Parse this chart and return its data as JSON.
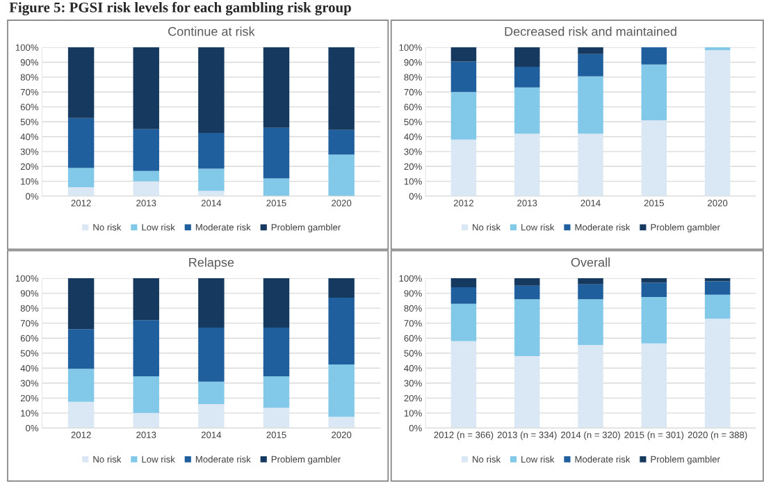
{
  "chart_data": [
    {
      "type": "bar",
      "title": "Continue at risk",
      "annotations": [
        "Figure 5: PGSI risk levels for each gambling risk group"
      ],
      "categories": [
        "2012",
        "2013",
        "2014",
        "2015",
        "2020"
      ],
      "stacked": true,
      "ylim": [
        0,
        100
      ],
      "yticks": [
        {
          "value": 0,
          "label": "0%"
        },
        {
          "value": 10,
          "label": "10%"
        },
        {
          "value": 20,
          "label": "20%"
        },
        {
          "value": 30,
          "label": "30%"
        },
        {
          "value": 40,
          "label": "40%"
        },
        {
          "value": 50,
          "label": "50%"
        },
        {
          "value": 60,
          "label": "60%"
        },
        {
          "value": 70,
          "label": "70%"
        },
        {
          "value": 80,
          "label": "80%"
        },
        {
          "value": 90,
          "label": "90%"
        },
        {
          "value": 100,
          "label": "100%"
        }
      ],
      "grid": "y",
      "legend": "bottom",
      "series": [
        {
          "name": "No risk",
          "color": "#dae8f5",
          "values": [
            6,
            10,
            3.5,
            0,
            0
          ]
        },
        {
          "name": "Low risk",
          "color": "#82c8e8",
          "values": [
            13,
            7,
            15,
            12,
            28
          ]
        },
        {
          "name": "Moderate risk",
          "color": "#1f5f9e",
          "values": [
            33.5,
            28,
            24,
            34,
            16.5
          ]
        },
        {
          "name": "Problem gambler",
          "color": "#163a5f",
          "values": [
            47.5,
            55,
            57.5,
            54,
            55.5
          ]
        }
      ]
    },
    {
      "type": "bar",
      "title": "Decreased risk and maintained",
      "categories": [
        "2012",
        "2013",
        "2014",
        "2015",
        "2020"
      ],
      "stacked": true,
      "ylim": [
        0,
        100
      ],
      "yticks": [
        {
          "value": 0,
          "label": "0%"
        },
        {
          "value": 10,
          "label": "10%"
        },
        {
          "value": 20,
          "label": "20%"
        },
        {
          "value": 30,
          "label": "30%"
        },
        {
          "value": 40,
          "label": "40%"
        },
        {
          "value": 50,
          "label": "50%"
        },
        {
          "value": 60,
          "label": "60%"
        },
        {
          "value": 70,
          "label": "70%"
        },
        {
          "value": 80,
          "label": "80%"
        },
        {
          "value": 90,
          "label": "90%"
        },
        {
          "value": 100,
          "label": "100%"
        }
      ],
      "grid": "y",
      "legend": "bottom",
      "series": [
        {
          "name": "No risk",
          "color": "#dae8f5",
          "values": [
            38,
            42,
            42,
            51,
            98
          ]
        },
        {
          "name": "Low risk",
          "color": "#82c8e8",
          "values": [
            32,
            31,
            38.5,
            37.5,
            2
          ]
        },
        {
          "name": "Moderate risk",
          "color": "#1f5f9e",
          "values": [
            20.5,
            14,
            15,
            11.5,
            0
          ]
        },
        {
          "name": "Problem gambler",
          "color": "#163a5f",
          "values": [
            9.5,
            13,
            4.5,
            0,
            0
          ]
        }
      ]
    },
    {
      "type": "bar",
      "title": "Relapse",
      "categories": [
        "2012",
        "2013",
        "2014",
        "2015",
        "2020"
      ],
      "stacked": true,
      "ylim": [
        0,
        100
      ],
      "yticks": [
        {
          "value": 0,
          "label": "0%"
        },
        {
          "value": 10,
          "label": "10%"
        },
        {
          "value": 20,
          "label": "20%"
        },
        {
          "value": 30,
          "label": "30%"
        },
        {
          "value": 40,
          "label": "40%"
        },
        {
          "value": 50,
          "label": "50%"
        },
        {
          "value": 60,
          "label": "60%"
        },
        {
          "value": 70,
          "label": "70%"
        },
        {
          "value": 80,
          "label": "80%"
        },
        {
          "value": 90,
          "label": "90%"
        },
        {
          "value": 100,
          "label": "100%"
        }
      ],
      "grid": "y",
      "legend": "bottom",
      "series": [
        {
          "name": "No risk",
          "color": "#dae8f5",
          "values": [
            17.5,
            10,
            16,
            13.5,
            7.5
          ]
        },
        {
          "name": "Low risk",
          "color": "#82c8e8",
          "values": [
            22,
            24.5,
            15,
            21,
            35
          ]
        },
        {
          "name": "Moderate risk",
          "color": "#1f5f9e",
          "values": [
            26.5,
            37.5,
            36,
            32.5,
            44.5
          ]
        },
        {
          "name": "Problem gambler",
          "color": "#163a5f",
          "values": [
            34,
            28,
            33,
            33,
            13
          ]
        }
      ]
    },
    {
      "type": "bar",
      "title": "Overall",
      "categories": [
        "2012 (n = 366)",
        "2013 (n = 334)",
        "2014 (n = 320)",
        "2015 (n = 301)",
        "2020 (n = 388)"
      ],
      "stacked": true,
      "ylim": [
        0,
        100
      ],
      "yticks": [
        {
          "value": 0,
          "label": "0%"
        },
        {
          "value": 10,
          "label": "10%"
        },
        {
          "value": 20,
          "label": "20%"
        },
        {
          "value": 30,
          "label": "30%"
        },
        {
          "value": 40,
          "label": "40%"
        },
        {
          "value": 50,
          "label": "50%"
        },
        {
          "value": 60,
          "label": "60%"
        },
        {
          "value": 70,
          "label": "70%"
        },
        {
          "value": 80,
          "label": "80%"
        },
        {
          "value": 90,
          "label": "90%"
        },
        {
          "value": 100,
          "label": "100%"
        }
      ],
      "grid": "y",
      "legend": "bottom",
      "series": [
        {
          "name": "No risk",
          "color": "#dae8f5",
          "values": [
            58,
            48,
            55.5,
            56.5,
            73
          ]
        },
        {
          "name": "Low risk",
          "color": "#82c8e8",
          "values": [
            25,
            38,
            30.5,
            31,
            16
          ]
        },
        {
          "name": "Moderate risk",
          "color": "#1f5f9e",
          "values": [
            11,
            9,
            10,
            9.5,
            9
          ]
        },
        {
          "name": "Problem gambler",
          "color": "#163a5f",
          "values": [
            6,
            5,
            4,
            3,
            2
          ]
        }
      ]
    }
  ]
}
